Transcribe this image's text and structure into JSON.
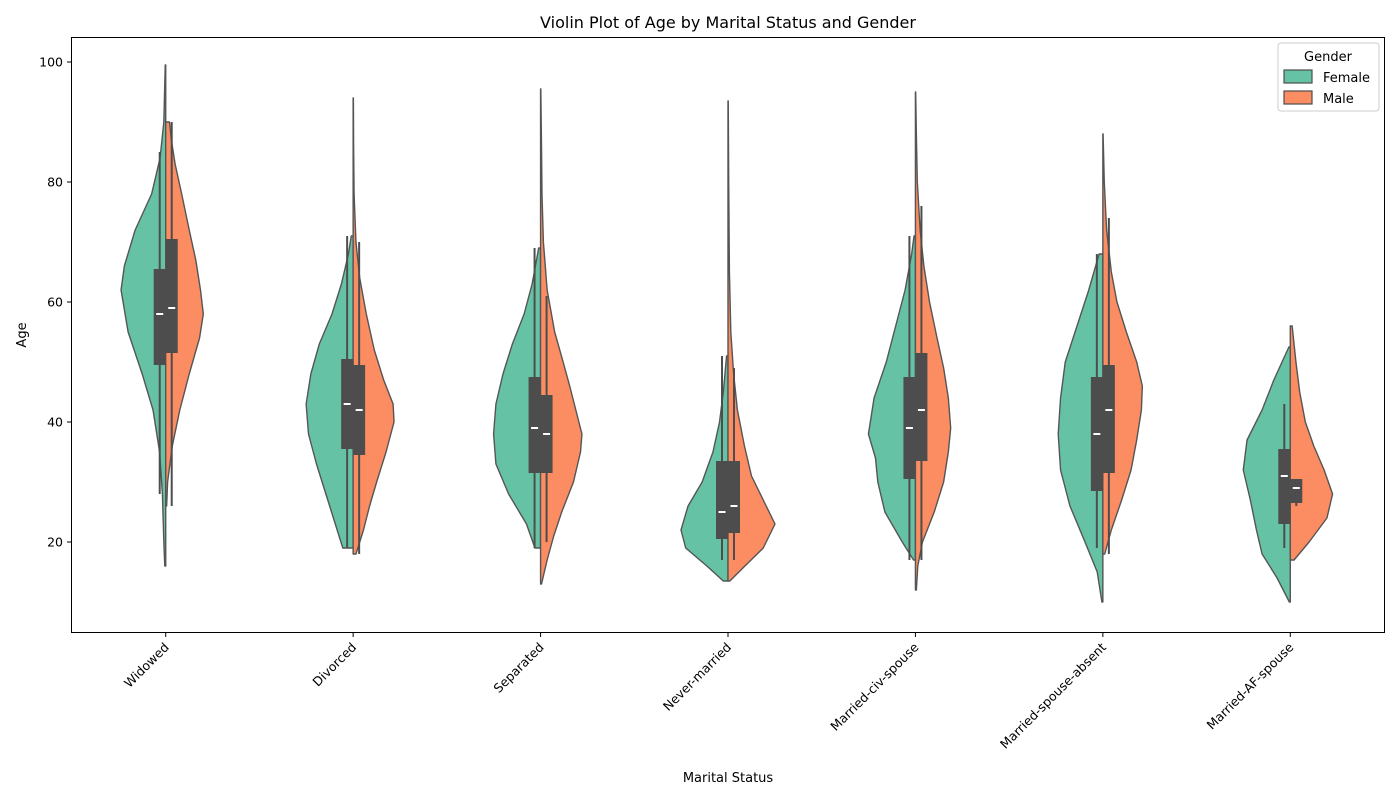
{
  "chart_data": {
    "type": "violin",
    "title": "Violin Plot of Age by Marital Status and Gender",
    "xlabel": "Marital Status",
    "ylabel": "Age",
    "ylim": [
      5,
      104
    ],
    "yticks": [
      20,
      40,
      60,
      80,
      100
    ],
    "categories": [
      "Widowed",
      "Divorced",
      "Separated",
      "Never-married",
      "Married-civ-spouse",
      "Married-spouse-absent",
      "Married-AF-spouse"
    ],
    "legend": {
      "title": "Gender",
      "position": "top-right"
    },
    "series": [
      {
        "name": "Female",
        "color": "#66c2a5",
        "stats": [
          {
            "min": 28,
            "q1": 49.5,
            "median": 58,
            "q3": 65.5,
            "max": 85
          },
          {
            "min": 19,
            "q1": 35.5,
            "median": 43,
            "q3": 50.5,
            "max": 71
          },
          {
            "min": 19,
            "q1": 31.5,
            "median": 39,
            "q3": 47.5,
            "max": 69
          },
          {
            "min": 17,
            "q1": 20.5,
            "median": 25,
            "q3": 33.5,
            "max": 51
          },
          {
            "min": 17,
            "q1": 30.5,
            "median": 39,
            "q3": 47.5,
            "max": 71
          },
          {
            "min": 19,
            "q1": 28.5,
            "median": 38,
            "q3": 47.5,
            "max": 68
          },
          {
            "min": 19,
            "q1": 23,
            "median": 31,
            "q3": 35.5,
            "max": 43
          }
        ],
        "density": [
          {
            "cut": [
              16,
              99.5
            ],
            "pts": [
              [
                16,
                0.02
              ],
              [
                20,
                0.04
              ],
              [
                28,
                0.07
              ],
              [
                35,
                0.13
              ],
              [
                42,
                0.27
              ],
              [
                48,
                0.5
              ],
              [
                55,
                0.8
              ],
              [
                62,
                0.95
              ],
              [
                66,
                0.88
              ],
              [
                72,
                0.65
              ],
              [
                78,
                0.3
              ],
              [
                84,
                0.12
              ],
              [
                90,
                0.04
              ],
              [
                99.5,
                0.01
              ]
            ]
          },
          {
            "cut": [
              19,
              71
            ],
            "pts": [
              [
                19,
                0.22
              ],
              [
                23,
                0.38
              ],
              [
                28,
                0.58
              ],
              [
                33,
                0.78
              ],
              [
                38,
                0.95
              ],
              [
                43,
                1.0
              ],
              [
                48,
                0.9
              ],
              [
                53,
                0.72
              ],
              [
                58,
                0.45
              ],
              [
                63,
                0.25
              ],
              [
                68,
                0.1
              ],
              [
                71,
                0.04
              ]
            ]
          },
          {
            "cut": [
              19,
              69
            ],
            "pts": [
              [
                19,
                0.12
              ],
              [
                23,
                0.3
              ],
              [
                28,
                0.68
              ],
              [
                33,
                0.95
              ],
              [
                38,
                1.0
              ],
              [
                43,
                0.95
              ],
              [
                48,
                0.8
              ],
              [
                53,
                0.6
              ],
              [
                58,
                0.35
              ],
              [
                63,
                0.18
              ],
              [
                69,
                0.04
              ]
            ]
          },
          {
            "cut": [
              13.5,
              51
            ],
            "pts": [
              [
                13.5,
                0.1
              ],
              [
                16,
                0.45
              ],
              [
                19,
                0.9
              ],
              [
                22,
                1.0
              ],
              [
                26,
                0.85
              ],
              [
                30,
                0.55
              ],
              [
                35,
                0.32
              ],
              [
                40,
                0.18
              ],
              [
                45,
                0.1
              ],
              [
                51,
                0.03
              ]
            ]
          },
          {
            "cut": [
              17,
              71
            ],
            "pts": [
              [
                17,
                0.04
              ],
              [
                20,
                0.28
              ],
              [
                25,
                0.65
              ],
              [
                30,
                0.8
              ],
              [
                34,
                0.85
              ],
              [
                38,
                1.0
              ],
              [
                44,
                0.88
              ],
              [
                50,
                0.62
              ],
              [
                56,
                0.42
              ],
              [
                62,
                0.22
              ],
              [
                68,
                0.08
              ],
              [
                71,
                0.03
              ]
            ]
          },
          {
            "cut": [
              10,
              68
            ],
            "pts": [
              [
                10,
                0.02
              ],
              [
                15,
                0.12
              ],
              [
                20,
                0.38
              ],
              [
                26,
                0.7
              ],
              [
                32,
                0.9
              ],
              [
                38,
                0.95
              ],
              [
                44,
                0.9
              ],
              [
                50,
                0.8
              ],
              [
                56,
                0.55
              ],
              [
                62,
                0.3
              ],
              [
                68,
                0.08
              ]
            ]
          },
          {
            "cut": [
              10,
              52.5
            ],
            "pts": [
              [
                10,
                0.02
              ],
              [
                14,
                0.28
              ],
              [
                18,
                0.6
              ],
              [
                22,
                0.72
              ],
              [
                27,
                0.85
              ],
              [
                32,
                1.0
              ],
              [
                37,
                0.92
              ],
              [
                42,
                0.6
              ],
              [
                47,
                0.35
              ],
              [
                52.5,
                0.03
              ]
            ]
          }
        ]
      },
      {
        "name": "Male",
        "color": "#fc8d62",
        "stats": [
          {
            "min": 26,
            "q1": 51.5,
            "median": 59,
            "q3": 70.5,
            "max": 90
          },
          {
            "min": 18,
            "q1": 34.5,
            "median": 42,
            "q3": 49.5,
            "max": 70
          },
          {
            "min": 20,
            "q1": 31.5,
            "median": 38,
            "q3": 44.5,
            "max": 61
          },
          {
            "min": 17,
            "q1": 21.5,
            "median": 26,
            "q3": 33.5,
            "max": 49
          },
          {
            "min": 17,
            "q1": 33.5,
            "median": 42,
            "q3": 51.5,
            "max": 76
          },
          {
            "min": 18,
            "q1": 31.5,
            "median": 42,
            "q3": 49.5,
            "max": 74
          },
          {
            "min": 26,
            "q1": 26.5,
            "median": 29,
            "q3": 30.5,
            "max": 30.5
          }
        ],
        "density": [
          {
            "cut": [
              26,
              90
            ],
            "pts": [
              [
                26,
                0.02
              ],
              [
                30,
                0.04
              ],
              [
                36,
                0.14
              ],
              [
                42,
                0.3
              ],
              [
                48,
                0.5
              ],
              [
                54,
                0.72
              ],
              [
                58,
                0.8
              ],
              [
                62,
                0.74
              ],
              [
                67,
                0.64
              ],
              [
                72,
                0.5
              ],
              [
                78,
                0.34
              ],
              [
                83,
                0.2
              ],
              [
                87,
                0.12
              ],
              [
                90,
                0.08
              ]
            ]
          },
          {
            "cut": [
              18,
              94
            ],
            "pts": [
              [
                18,
                0.06
              ],
              [
                22,
                0.22
              ],
              [
                26,
                0.35
              ],
              [
                30,
                0.5
              ],
              [
                35,
                0.7
              ],
              [
                40,
                0.87
              ],
              [
                43,
                0.85
              ],
              [
                47,
                0.65
              ],
              [
                52,
                0.45
              ],
              [
                58,
                0.28
              ],
              [
                64,
                0.14
              ],
              [
                70,
                0.06
              ],
              [
                78,
                0.02
              ],
              [
                86,
                0.01
              ],
              [
                94,
                0.005
              ]
            ]
          },
          {
            "cut": [
              13,
              95.5
            ],
            "pts": [
              [
                13,
                0.02
              ],
              [
                17,
                0.14
              ],
              [
                21,
                0.28
              ],
              [
                25,
                0.45
              ],
              [
                30,
                0.7
              ],
              [
                35,
                0.85
              ],
              [
                38,
                0.88
              ],
              [
                42,
                0.75
              ],
              [
                46,
                0.62
              ],
              [
                50,
                0.48
              ],
              [
                55,
                0.3
              ],
              [
                62,
                0.14
              ],
              [
                70,
                0.06
              ],
              [
                78,
                0.03
              ],
              [
                86,
                0.02
              ],
              [
                95.5,
                0.005
              ]
            ]
          },
          {
            "cut": [
              13.5,
              93.5
            ],
            "pts": [
              [
                13.5,
                0.04
              ],
              [
                16,
                0.36
              ],
              [
                19,
                0.75
              ],
              [
                23,
                1.0
              ],
              [
                27,
                0.75
              ],
              [
                31,
                0.5
              ],
              [
                36,
                0.35
              ],
              [
                42,
                0.2
              ],
              [
                48,
                0.12
              ],
              [
                55,
                0.06
              ],
              [
                65,
                0.03
              ],
              [
                80,
                0.015
              ],
              [
                93.5,
                0.005
              ]
            ]
          },
          {
            "cut": [
              12,
              95
            ],
            "pts": [
              [
                12,
                0.02
              ],
              [
                16,
                0.05
              ],
              [
                20,
                0.15
              ],
              [
                25,
                0.4
              ],
              [
                30,
                0.6
              ],
              [
                35,
                0.7
              ],
              [
                39,
                0.75
              ],
              [
                44,
                0.7
              ],
              [
                49,
                0.6
              ],
              [
                54,
                0.46
              ],
              [
                60,
                0.3
              ],
              [
                66,
                0.18
              ],
              [
                72,
                0.1
              ],
              [
                80,
                0.04
              ],
              [
                88,
                0.02
              ],
              [
                95,
                0.005
              ]
            ]
          },
          {
            "cut": [
              18,
              88
            ],
            "pts": [
              [
                18,
                0.04
              ],
              [
                22,
                0.18
              ],
              [
                27,
                0.4
              ],
              [
                32,
                0.6
              ],
              [
                37,
                0.72
              ],
              [
                42,
                0.82
              ],
              [
                46,
                0.84
              ],
              [
                50,
                0.72
              ],
              [
                55,
                0.5
              ],
              [
                60,
                0.3
              ],
              [
                65,
                0.18
              ],
              [
                72,
                0.08
              ],
              [
                80,
                0.03
              ],
              [
                88,
                0.005
              ]
            ]
          },
          {
            "cut": [
              17,
              56
            ],
            "pts": [
              [
                17,
                0.08
              ],
              [
                20,
                0.4
              ],
              [
                24,
                0.78
              ],
              [
                28,
                0.9
              ],
              [
                32,
                0.72
              ],
              [
                36,
                0.5
              ],
              [
                40,
                0.32
              ],
              [
                45,
                0.2
              ],
              [
                50,
                0.12
              ],
              [
                56,
                0.04
              ]
            ]
          }
        ]
      }
    ]
  }
}
